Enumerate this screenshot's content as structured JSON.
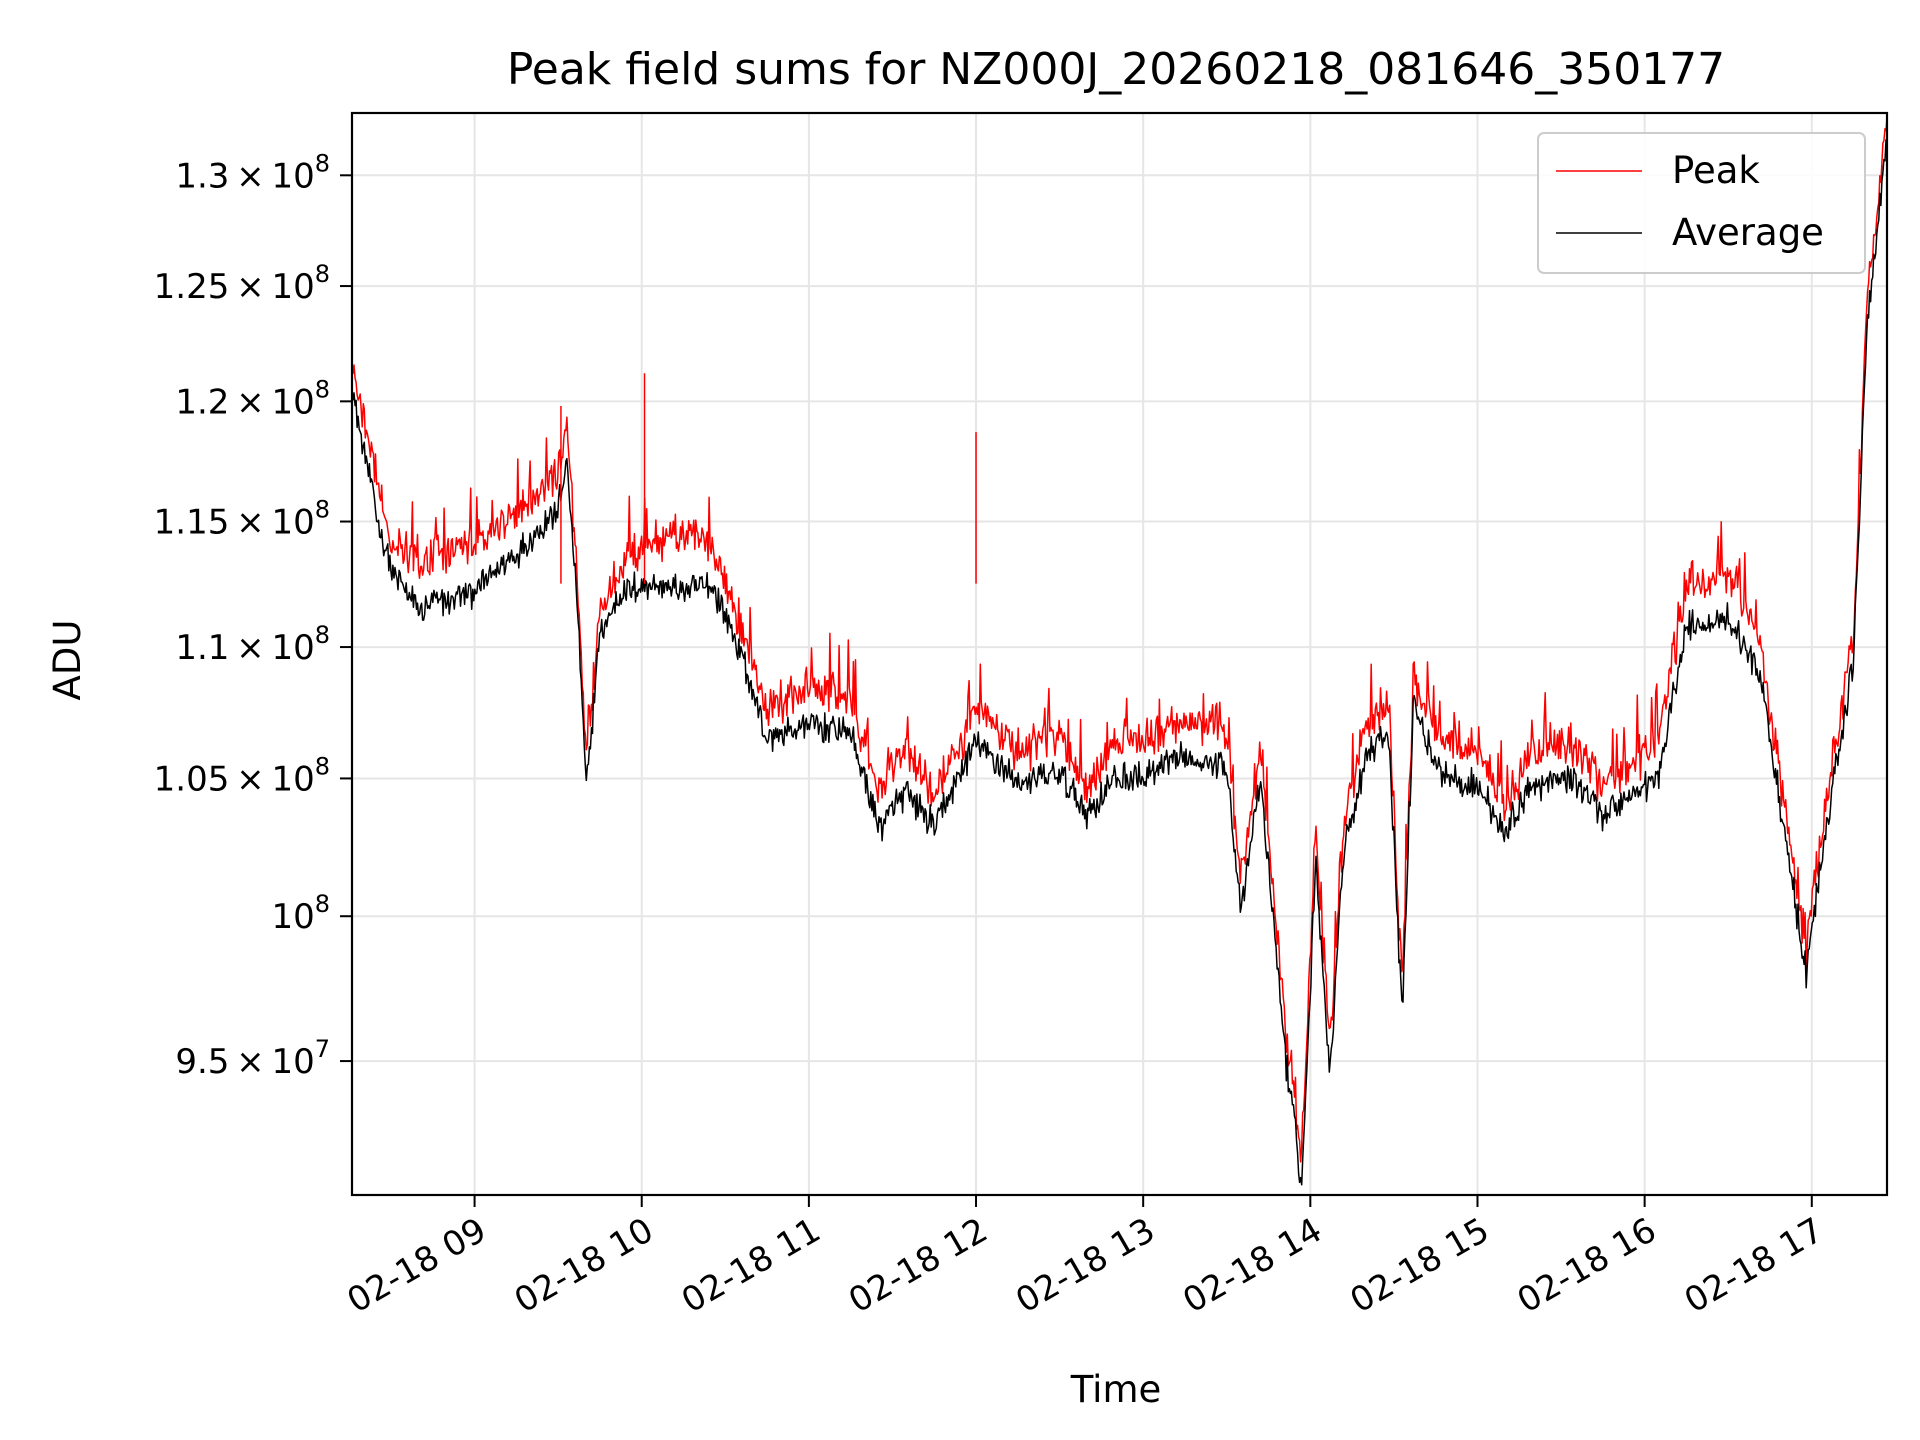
{
  "chart_data": {
    "type": "line",
    "title": "Peak field sums for NZ000J_20260218_081646_350177",
    "xlabel": "Time",
    "ylabel": "ADU",
    "y_scale": "log",
    "ylim": [
      90600000,
      132900000
    ],
    "xlim": [
      "02-18 08:16",
      "02-18 17:27"
    ],
    "grid": true,
    "legend_position": "top-right",
    "x_ticks": [
      "02-18 09",
      "02-18 10",
      "02-18 11",
      "02-18 12",
      "02-18 13",
      "02-18 14",
      "02-18 15",
      "02-18 16",
      "02-18 17"
    ],
    "y_ticks": [
      {
        "value": 95000000,
        "mantissa": "9.5",
        "exponent": "7"
      },
      {
        "value": 100000000,
        "mantissa": "",
        "exponent": "8"
      },
      {
        "value": 105000000,
        "mantissa": "1.05",
        "exponent": "8"
      },
      {
        "value": 110000000,
        "mantissa": "1.1",
        "exponent": "8"
      },
      {
        "value": 115000000,
        "mantissa": "1.15",
        "exponent": "8"
      },
      {
        "value": 120000000,
        "mantissa": "1.2",
        "exponent": "8"
      },
      {
        "value": 125000000,
        "mantissa": "1.25",
        "exponent": "8"
      },
      {
        "value": 130000000,
        "mantissa": "1.3",
        "exponent": "8"
      }
    ],
    "x_timestamps": [
      "02-18 08:16",
      "02-18 08:25",
      "02-18 08:30",
      "02-18 08:40",
      "02-18 09:00",
      "02-18 09:15",
      "02-18 09:30",
      "02-18 09:33",
      "02-18 09:37",
      "02-18 09:40",
      "02-18 09:45",
      "02-18 09:52",
      "02-18 10:00",
      "02-18 10:15",
      "02-18 10:25",
      "02-18 10:35",
      "02-18 10:45",
      "02-18 11:00",
      "02-18 11:15",
      "02-18 11:25",
      "02-18 11:35",
      "02-18 11:45",
      "02-18 12:00",
      "02-18 12:15",
      "02-18 12:30",
      "02-18 12:40",
      "02-18 12:50",
      "02-18 13:00",
      "02-18 13:15",
      "02-18 13:30",
      "02-18 13:35",
      "02-18 13:42",
      "02-18 13:52",
      "02-18 13:57",
      "02-18 14:02",
      "02-18 14:07",
      "02-18 14:12",
      "02-18 14:20",
      "02-18 14:28",
      "02-18 14:33",
      "02-18 14:37",
      "02-18 14:45",
      "02-18 15:00",
      "02-18 15:10",
      "02-18 15:20",
      "02-18 15:35",
      "02-18 15:45",
      "02-18 16:05",
      "02-18 16:15",
      "02-18 16:30",
      "02-18 16:42",
      "02-18 16:50",
      "02-18 16:58",
      "02-18 17:05",
      "02-18 17:15",
      "02-18 17:20",
      "02-18 17:27"
    ],
    "series": [
      {
        "name": "Peak",
        "color": "#ff0000",
        "values": [
          121000000,
          116000000,
          113500000,
          112800000,
          113500000,
          115000000,
          116500000,
          118500000,
          112000000,
          105000000,
          111000000,
          112500000,
          113500000,
          114000000,
          113500000,
          110500000,
          107000000,
          108000000,
          107500000,
          104000000,
          105500000,
          103800000,
          107000000,
          105500000,
          106000000,
          104200000,
          105800000,
          106000000,
          106500000,
          106500000,
          100500000,
          105500000,
          94800000,
          91500000,
          102500000,
          95000000,
          103000000,
          106500000,
          107500000,
          97000000,
          108500000,
          106000000,
          105500000,
          103500000,
          105500000,
          105800000,
          104200000,
          105800000,
          112000000,
          112500000,
          109500000,
          103500000,
          98500000,
          103500000,
          110000000,
          124000000,
          132000000
        ]
      },
      {
        "name": "Average",
        "color": "#000000",
        "values": [
          120500000,
          115300000,
          113000000,
          111500000,
          112200000,
          113700000,
          115500000,
          117500000,
          111500000,
          104500000,
          110500000,
          112000000,
          112500000,
          112200000,
          112500000,
          110000000,
          106500000,
          107000000,
          106700000,
          103200000,
          104500000,
          103200000,
          106400000,
          104800000,
          105200000,
          103700000,
          105000000,
          105000000,
          105800000,
          105600000,
          100000000,
          105000000,
          94300000,
          91000000,
          102000000,
          94500000,
          102500000,
          105800000,
          106900000,
          96500000,
          108000000,
          105300000,
          104800000,
          103000000,
          104800000,
          104900000,
          103700000,
          105000000,
          110800000,
          111200000,
          108700000,
          103000000,
          98000000,
          103000000,
          109500000,
          123500000,
          131500000
        ]
      }
    ]
  }
}
